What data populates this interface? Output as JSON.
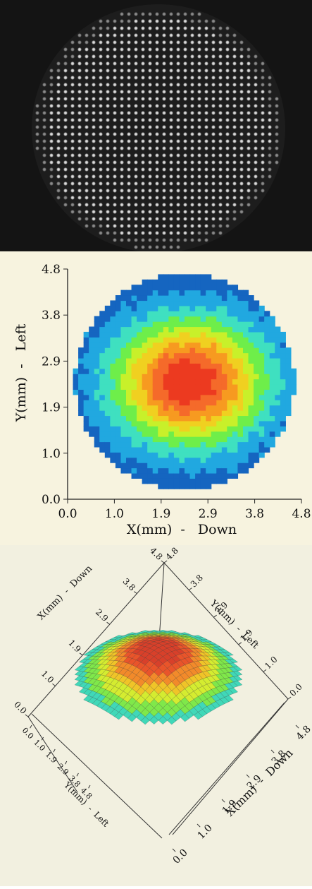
{
  "spot_image": {
    "grid_spacing_label": ""
  },
  "chart_data": [
    {
      "type": "heatmap",
      "title": "",
      "xlabel": "X(mm)  -   Down",
      "ylabel": "Y(mm)  -   Left",
      "x_ticks": [
        "0.0",
        "1.0",
        "1.9",
        "2.9",
        "3.8",
        "4.8"
      ],
      "y_ticks": [
        "0.0",
        "1.0",
        "1.9",
        "2.9",
        "3.8",
        "4.8"
      ],
      "xlim": [
        0.0,
        4.8
      ],
      "ylim": [
        0.0,
        4.8
      ],
      "aperture_radius_mm": 2.25,
      "aperture_center_mm": [
        2.4,
        2.45
      ],
      "peak_center_mm": [
        2.5,
        2.45
      ],
      "colormap": [
        "#1565c0",
        "#21a8e0",
        "#3fe0c0",
        "#6eee4a",
        "#c8f02a",
        "#f0d020",
        "#f79a20",
        "#f56a2a",
        "#ec3a20"
      ]
    },
    {
      "type": "surface3d",
      "title": "",
      "axis_labels": {
        "x_top": "X(mm)  -  Down",
        "y_top": "Y(mm)  -  Left",
        "x_bottom": "X(mm)  -  Down",
        "y_bottom": "Y(mm)  -  Left"
      },
      "ticks_top_left": [
        "0.0",
        "1.0",
        "1.9",
        "2.9",
        "3.8",
        "4.8"
      ],
      "ticks_top_right": [
        "4.8",
        "3.8",
        "2.9",
        "1.9",
        "1.0",
        "0.0"
      ],
      "ticks_bottom_left": [
        "4.8",
        "3.8",
        "2.9",
        "1.9",
        "1.0",
        "0.0"
      ],
      "ticks_bottom_right": [
        "4.8",
        "3.8",
        "2.9",
        "1.9",
        "1.0",
        "0.0"
      ]
    }
  ]
}
